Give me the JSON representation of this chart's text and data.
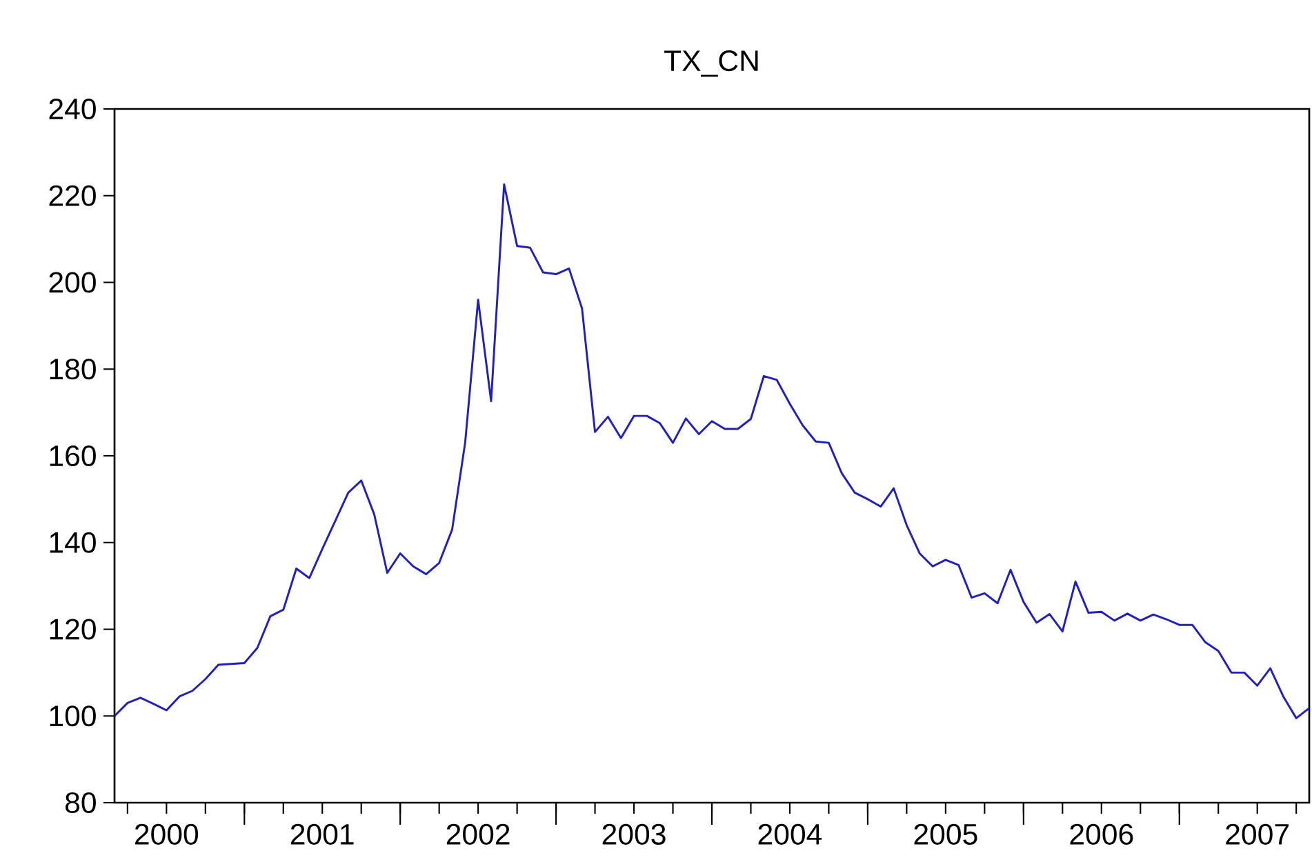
{
  "chart_data": {
    "type": "line",
    "title": "TX_CN",
    "x": [
      "2000-03",
      "2000-04",
      "2000-05",
      "2000-06",
      "2000-07",
      "2000-08",
      "2000-09",
      "2000-10",
      "2000-11",
      "2000-12",
      "2001-01",
      "2001-02",
      "2001-03",
      "2001-04",
      "2001-05",
      "2001-06",
      "2001-07",
      "2001-08",
      "2001-09",
      "2001-10",
      "2001-11",
      "2001-12",
      "2002-01",
      "2002-02",
      "2002-03",
      "2002-04",
      "2002-05",
      "2002-06",
      "2002-07",
      "2002-08",
      "2002-09",
      "2002-10",
      "2002-11",
      "2002-12",
      "2003-01",
      "2003-02",
      "2003-03",
      "2003-04",
      "2003-05",
      "2003-06",
      "2003-07",
      "2003-08",
      "2003-09",
      "2003-10",
      "2003-11",
      "2003-12",
      "2004-01",
      "2004-02",
      "2004-03",
      "2004-04",
      "2004-05",
      "2004-06",
      "2004-07",
      "2004-08",
      "2004-09",
      "2004-10",
      "2004-11",
      "2004-12",
      "2005-01",
      "2005-02",
      "2005-03",
      "2005-04",
      "2005-05",
      "2005-06",
      "2005-07",
      "2005-08",
      "2005-09",
      "2005-10",
      "2005-11",
      "2005-12",
      "2006-01",
      "2006-02",
      "2006-03",
      "2006-04",
      "2006-05",
      "2006-06",
      "2006-07",
      "2006-08",
      "2006-09",
      "2006-10",
      "2006-11",
      "2006-12",
      "2007-01",
      "2007-02",
      "2007-03",
      "2007-04",
      "2007-05",
      "2007-06",
      "2007-07",
      "2007-08",
      "2007-09",
      "2007-10",
      "2007-11"
    ],
    "series": [
      {
        "color": "#2020c0",
        "values": [
          100,
          103,
          104.2,
          102.8,
          101.3,
          104.5,
          105.8,
          108.5,
          111.8,
          112,
          112.2,
          115.7,
          123,
          124.5,
          134,
          131.8,
          138.5,
          145,
          151.5,
          154.3,
          146.5,
          133,
          137.5,
          134.5,
          132.7,
          135.3,
          143,
          163,
          196,
          172.6,
          222.6,
          208.4,
          208,
          202.3,
          201.9,
          203.2,
          194,
          165.5,
          169,
          164.1,
          169.2,
          169.2,
          167.5,
          163,
          168.6,
          165,
          168,
          166.2,
          166.2,
          168.5,
          178.4,
          177.5,
          172,
          167,
          163.3,
          163,
          156,
          151.5,
          150,
          148.3,
          152.5,
          144,
          137.5,
          134.5,
          136,
          134.8,
          127.3,
          128.3,
          126,
          133.7,
          126.3,
          121.5,
          123.5,
          119.5,
          131,
          123.8,
          124,
          122,
          123.6,
          122,
          123.4,
          122.3,
          121,
          121,
          117,
          115,
          110,
          110,
          107,
          111,
          104.5,
          99.5,
          101.8
        ]
      }
    ],
    "xlim": [
      "2000-03",
      "2007-11"
    ],
    "xticks": [
      {
        "value": "2000-04",
        "label": null
      },
      {
        "value": "2000-07",
        "label": "2000"
      },
      {
        "value": "2000-10",
        "label": null
      },
      {
        "value": "2001-01",
        "label": null
      },
      {
        "value": "2001-04",
        "label": null
      },
      {
        "value": "2001-07",
        "label": "2001"
      },
      {
        "value": "2001-10",
        "label": null
      },
      {
        "value": "2002-01",
        "label": null
      },
      {
        "value": "2002-04",
        "label": null
      },
      {
        "value": "2002-07",
        "label": "2002"
      },
      {
        "value": "2002-10",
        "label": null
      },
      {
        "value": "2003-01",
        "label": null
      },
      {
        "value": "2003-04",
        "label": null
      },
      {
        "value": "2003-07",
        "label": "2003"
      },
      {
        "value": "2003-10",
        "label": null
      },
      {
        "value": "2004-01",
        "label": null
      },
      {
        "value": "2004-04",
        "label": null
      },
      {
        "value": "2004-07",
        "label": "2004"
      },
      {
        "value": "2004-10",
        "label": null
      },
      {
        "value": "2005-01",
        "label": null
      },
      {
        "value": "2005-04",
        "label": null
      },
      {
        "value": "2005-07",
        "label": "2005"
      },
      {
        "value": "2005-10",
        "label": null
      },
      {
        "value": "2006-01",
        "label": null
      },
      {
        "value": "2006-04",
        "label": null
      },
      {
        "value": "2006-07",
        "label": "2006"
      },
      {
        "value": "2006-10",
        "label": null
      },
      {
        "value": "2007-01",
        "label": null
      },
      {
        "value": "2007-04",
        "label": null
      },
      {
        "value": "2007-07",
        "label": "2007"
      },
      {
        "value": "2007-10",
        "label": null
      }
    ],
    "ylim": [
      80,
      240
    ],
    "yticks": [
      80,
      100,
      120,
      140,
      160,
      180,
      200,
      220,
      240
    ],
    "marker": "none",
    "line_style": "solid"
  }
}
